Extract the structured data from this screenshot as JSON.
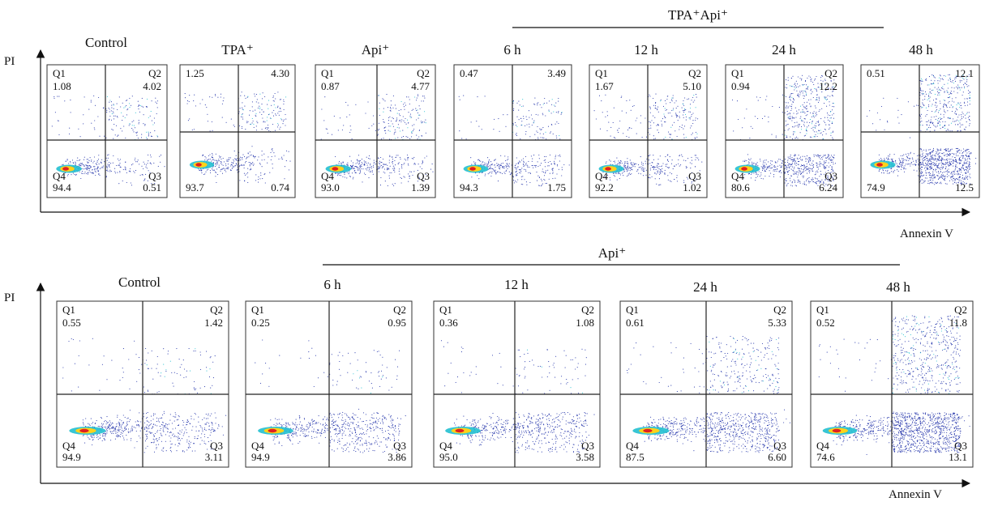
{
  "colors": {
    "low": "#2233aa",
    "mid": "#22c0d0",
    "high": "#ffd21a",
    "peak": "#e02020",
    "frame": "#333333"
  },
  "row1": {
    "group_label": "TPA⁺Api⁺",
    "y_axis_label": "PI",
    "x_axis_label": "Annexin V"
  },
  "row2": {
    "group_label": "Api⁺",
    "y_axis_label": "PI",
    "x_axis_label": "Annexin V"
  },
  "chart_data": [
    {
      "type": "scatter",
      "title": "Control",
      "xlabel": "Annexin V",
      "ylabel": "PI",
      "quadrant_labels": {
        "q1": "Q1",
        "q2": "Q2",
        "q3": "Q3",
        "q4": "Q4"
      },
      "quadrants": {
        "q1": "1.08",
        "q2": "4.02",
        "q3": "0.51",
        "q4": "94.4"
      }
    },
    {
      "type": "scatter",
      "title": "TPA⁺",
      "xlabel": "Annexin V",
      "ylabel": "PI",
      "quadrant_labels": {
        "q1": "",
        "q2": "",
        "q3": "",
        "q4": ""
      },
      "quadrants": {
        "q1": "1.25",
        "q2": "4.30",
        "q3": "0.74",
        "q4": "93.7"
      }
    },
    {
      "type": "scatter",
      "title": "Api⁺",
      "xlabel": "Annexin V",
      "ylabel": "PI",
      "quadrant_labels": {
        "q1": "Q1",
        "q2": "Q2",
        "q3": "Q3",
        "q4": "Q4"
      },
      "quadrants": {
        "q1": "0.87",
        "q2": "4.77",
        "q3": "1.39",
        "q4": "93.0"
      }
    },
    {
      "type": "scatter",
      "title": "6 h",
      "xlabel": "Annexin V",
      "ylabel": "PI",
      "quadrant_labels": {
        "q1": "",
        "q2": "",
        "q3": "",
        "q4": ""
      },
      "quadrants": {
        "q1": "0.47",
        "q2": "3.49",
        "q3": "1.75",
        "q4": "94.3"
      }
    },
    {
      "type": "scatter",
      "title": "12 h",
      "xlabel": "Annexin V",
      "ylabel": "PI",
      "quadrant_labels": {
        "q1": "Q1",
        "q2": "Q2",
        "q3": "Q3",
        "q4": "Q4"
      },
      "quadrants": {
        "q1": "1.67",
        "q2": "5.10",
        "q3": "1.02",
        "q4": "92.2"
      }
    },
    {
      "type": "scatter",
      "title": "24 h",
      "xlabel": "Annexin V",
      "ylabel": "PI",
      "quadrant_labels": {
        "q1": "Q1",
        "q2": "Q2",
        "q3": "Q3",
        "q4": "Q4"
      },
      "quadrants": {
        "q1": "0.94",
        "q2": "12.2",
        "q3": "6.24",
        "q4": "80.6"
      }
    },
    {
      "type": "scatter",
      "title": "48 h",
      "xlabel": "Annexin V",
      "ylabel": "PI",
      "quadrant_labels": {
        "q1": "",
        "q2": "",
        "q3": "",
        "q4": ""
      },
      "quadrants": {
        "q1": "0.51",
        "q2": "12.1",
        "q3": "12.5",
        "q4": "74.9"
      }
    },
    {
      "type": "scatter",
      "title": "Control",
      "xlabel": "Annexin V",
      "ylabel": "PI",
      "quadrant_labels": {
        "q1": "Q1",
        "q2": "Q2",
        "q3": "Q3",
        "q4": "Q4"
      },
      "quadrants": {
        "q1": "0.55",
        "q2": "1.42",
        "q3": "3.11",
        "q4": "94.9"
      }
    },
    {
      "type": "scatter",
      "title": "6 h",
      "xlabel": "Annexin V",
      "ylabel": "PI",
      "quadrant_labels": {
        "q1": "Q1",
        "q2": "Q2",
        "q3": "Q3",
        "q4": "Q4"
      },
      "quadrants": {
        "q1": "0.25",
        "q2": "0.95",
        "q3": "3.86",
        "q4": "94.9"
      }
    },
    {
      "type": "scatter",
      "title": "12 h",
      "xlabel": "Annexin V",
      "ylabel": "PI",
      "quadrant_labels": {
        "q1": "Q1",
        "q2": "Q2",
        "q3": "Q3",
        "q4": "Q4"
      },
      "quadrants": {
        "q1": "0.36",
        "q2": "1.08",
        "q3": "3.58",
        "q4": "95.0"
      }
    },
    {
      "type": "scatter",
      "title": "24 h",
      "xlabel": "Annexin V",
      "ylabel": "PI",
      "quadrant_labels": {
        "q1": "Q1",
        "q2": "Q2",
        "q3": "Q3",
        "q4": "Q4"
      },
      "quadrants": {
        "q1": "0.61",
        "q2": "5.33",
        "q3": "6.60",
        "q4": "87.5"
      }
    },
    {
      "type": "scatter",
      "title": "48 h",
      "xlabel": "Annexin V",
      "ylabel": "PI",
      "quadrant_labels": {
        "q1": "Q1",
        "q2": "Q2",
        "q3": "Q3",
        "q4": "Q4"
      },
      "quadrants": {
        "q1": "0.52",
        "q2": "11.8",
        "q3": "13.1",
        "q4": "74.6"
      }
    }
  ]
}
